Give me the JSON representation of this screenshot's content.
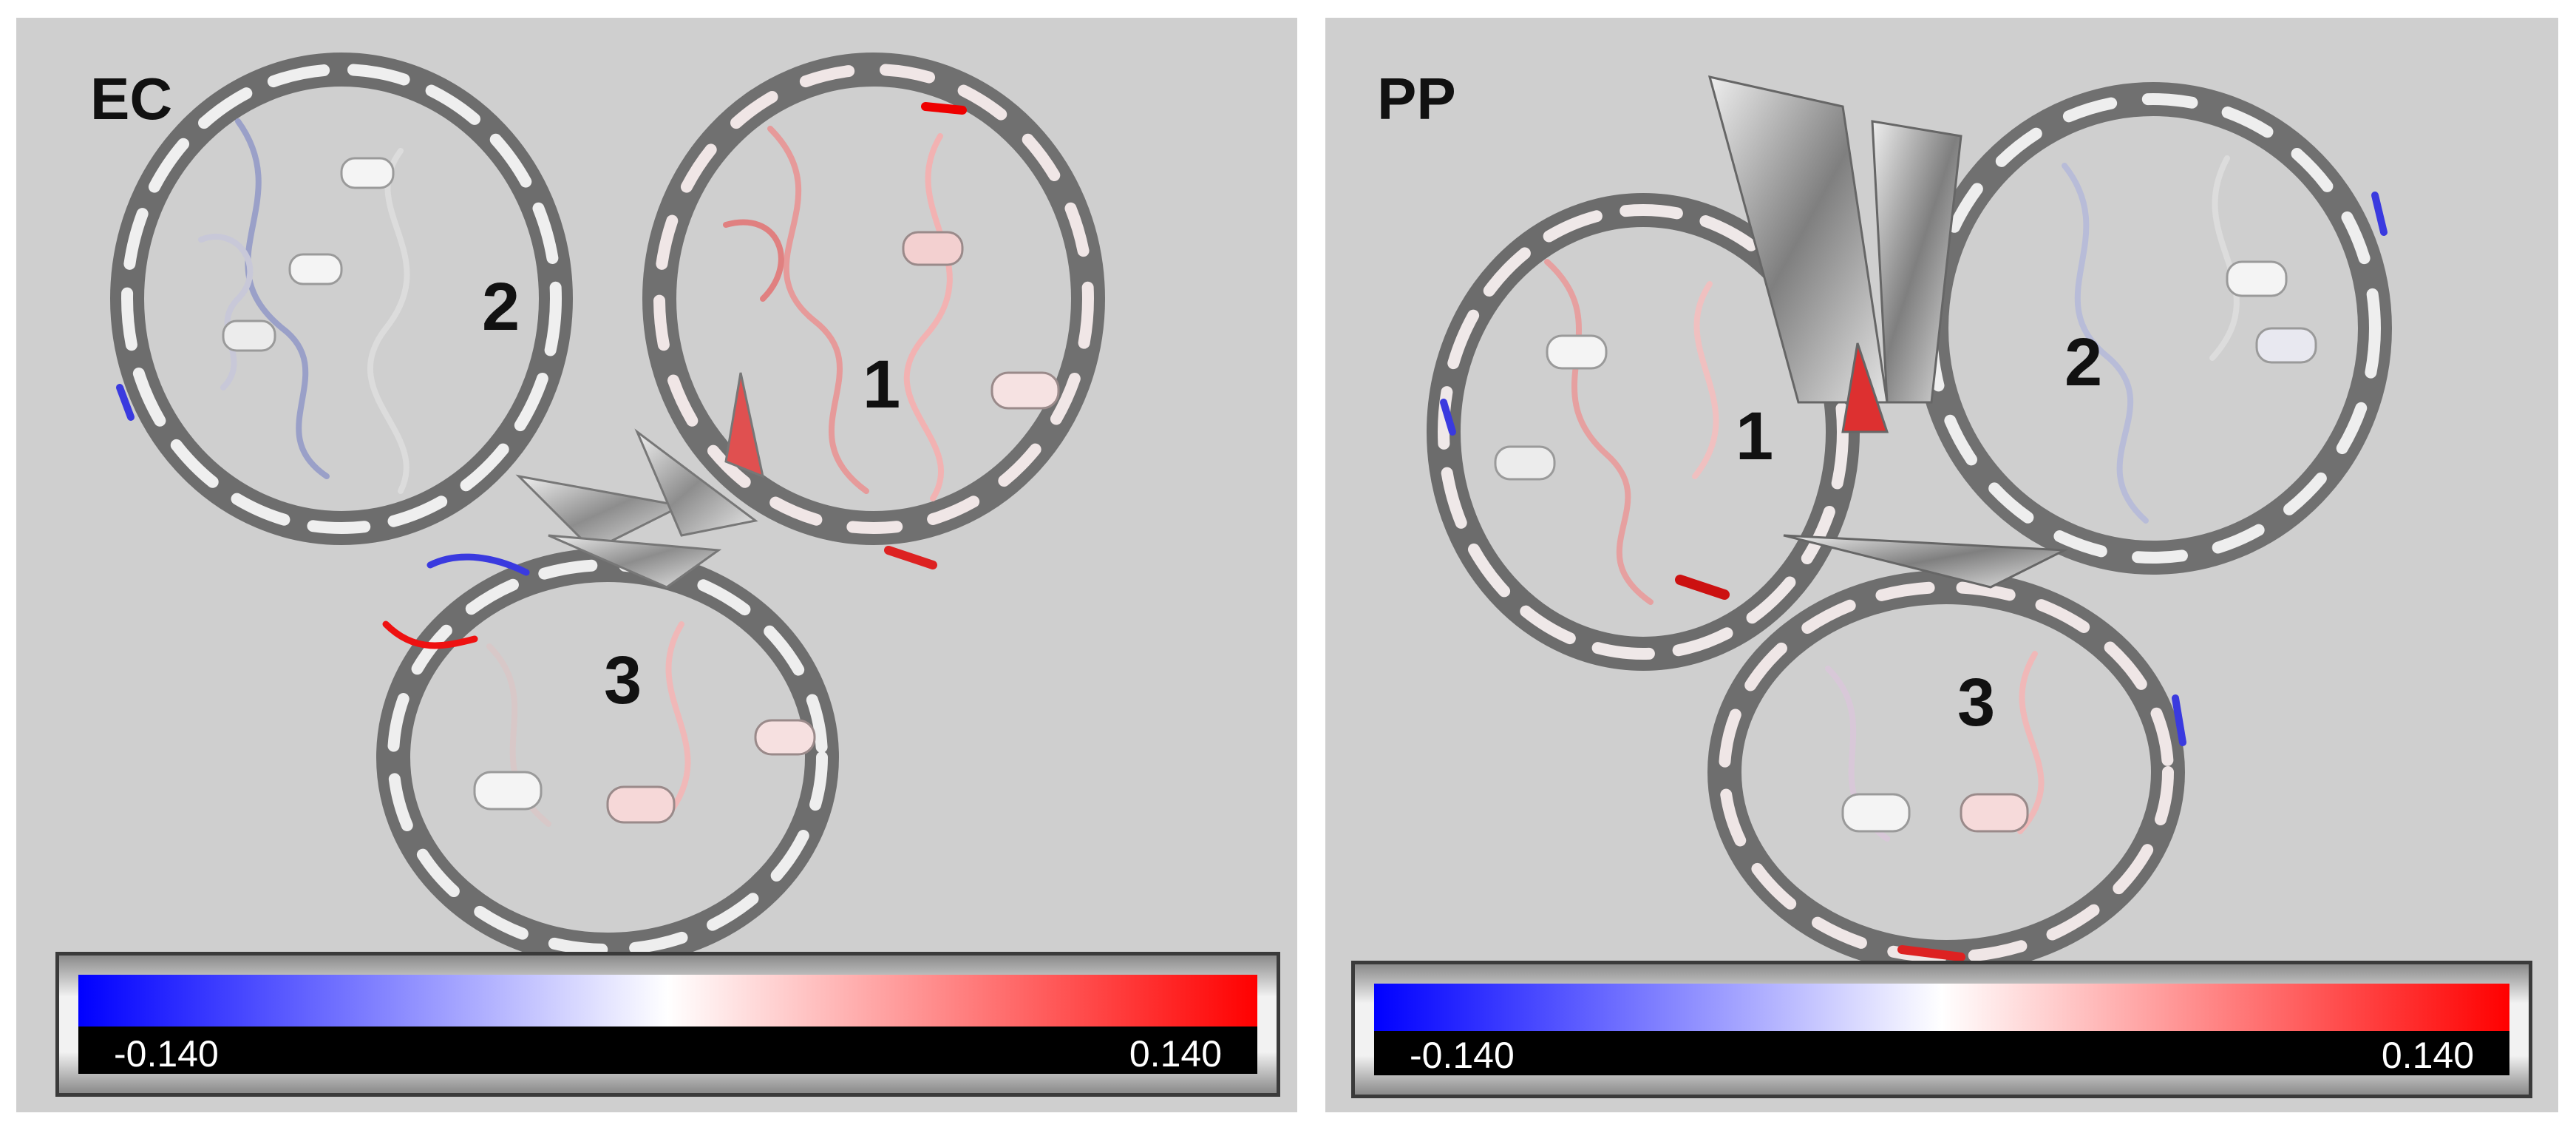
{
  "panels": [
    {
      "label": "EC",
      "monomers": [
        "1",
        "2",
        "3"
      ],
      "colorbar": {
        "min_label": "-0.140",
        "max_label": "0.140",
        "min_color": "#0000ff",
        "mid_color": "#ffffff",
        "max_color": "#ff0000"
      }
    },
    {
      "label": "PP",
      "monomers": [
        "1",
        "2",
        "3"
      ],
      "colorbar": {
        "min_label": "-0.140",
        "max_label": "0.140",
        "min_color": "#0000ff",
        "mid_color": "#ffffff",
        "max_color": "#ff0000"
      }
    }
  ]
}
